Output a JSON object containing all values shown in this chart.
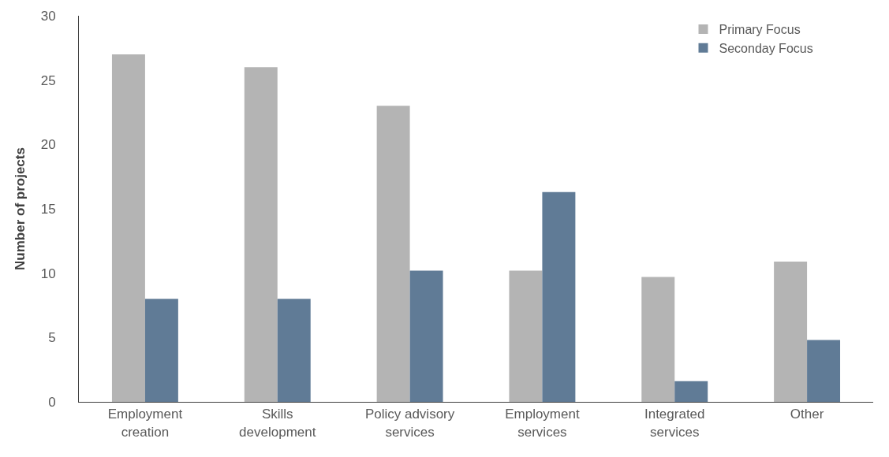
{
  "chart_data": {
    "type": "bar",
    "ylabel": "Number of projects",
    "categories": [
      "Employment\ncreation",
      "Skills\ndevelopment",
      "Policy advisory\nservices",
      "Employment\nservices",
      "Integrated\nservices",
      "Other"
    ],
    "series": [
      {
        "name": "Primary Focus",
        "color": "#b4b4b4",
        "values": [
          27,
          26,
          23,
          10.2,
          9.7,
          10.9
        ]
      },
      {
        "name": "Seconday Focus",
        "color": "#607b96",
        "values": [
          8,
          8,
          10.2,
          16.3,
          1.6,
          4.8
        ]
      }
    ],
    "ylim": [
      0,
      30
    ],
    "yticks": [
      0,
      5,
      10,
      15,
      20,
      25,
      30
    ],
    "legend": "top right"
  }
}
